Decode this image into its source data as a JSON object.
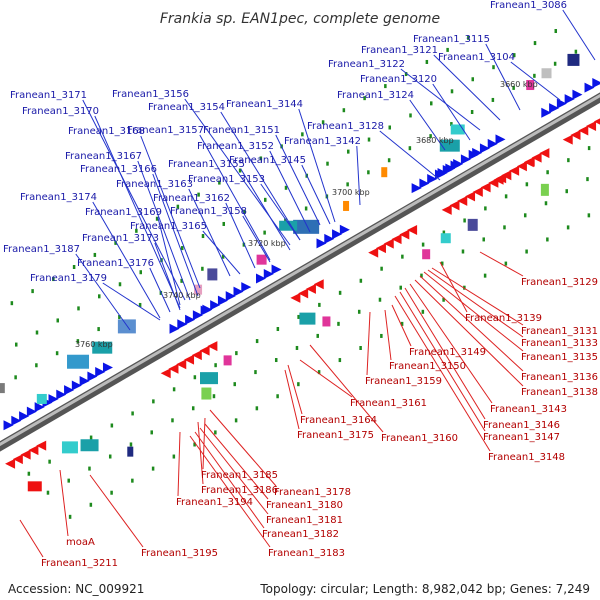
{
  "title": "Frankia sp. EAN1pec, complete genome",
  "accession": "Accession: NC_009921",
  "summary": "Topology: circular; Length: 8,982,042 bp; Genes: 7,249",
  "kbp_labels": [
    "3660 kbp",
    "3680 kbp",
    "3700 kbp",
    "3720 kbp",
    "3740 kbp",
    "3760 kbp"
  ],
  "forward_labels": [
    "Franean1_3086",
    "Franean1_3115",
    "Franean1_3121",
    "Franean1_3122",
    "Franean1_3104",
    "Franean1_3120",
    "Franean1_3124",
    "Franean1_3171",
    "Franean1_3156",
    "Franean1_3170",
    "Franean1_3154",
    "Franean1_3144",
    "Franean1_3128",
    "Franean1_3168",
    "Franean1_3157",
    "Franean1_3151",
    "Franean1_3142",
    "Franean1_3152",
    "Franean1_3167",
    "Franean1_3145",
    "Franean1_3155",
    "Franean1_3166",
    "Franean1_3153",
    "Franean1_3163",
    "Franean1_3174",
    "Franean1_3162",
    "Franean1_3169",
    "Franean1_3158",
    "Franean1_3165",
    "Franean1_3173",
    "Franean1_3187",
    "Franean1_3176",
    "Franean1_3179"
  ],
  "reverse_labels": [
    "Franean1_3129",
    "Franean1_3139",
    "Franean1_3131",
    "Franean1_3133",
    "Franean1_3149",
    "Franean1_3135",
    "Franean1_3150",
    "Franean1_3159",
    "Franean1_3136",
    "Franean1_3138",
    "Franean1_3161",
    "Franean1_3143",
    "Franean1_3164",
    "Franean1_3146",
    "Franean1_3175",
    "Franean1_3160",
    "Franean1_3147",
    "Franean1_3148",
    "Franean1_3185",
    "Franean1_3186",
    "Franean1_3178",
    "Franean1_3194",
    "Franean1_3180",
    "Franean1_3181",
    "moaA",
    "Franean1_3182",
    "Franean1_3195",
    "Franean1_3183",
    "Franean1_3211"
  ]
}
